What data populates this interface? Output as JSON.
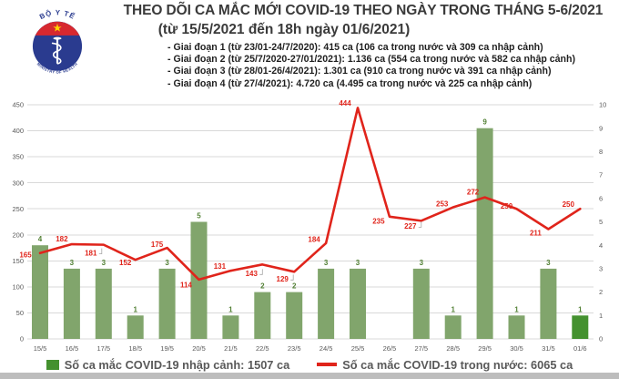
{
  "header": {
    "title": "THEO DÕI CA MẮC MỚI COVID-19 THEO NGÀY TRONG THÁNG 5-6/2021",
    "subtitle": "(từ 15/5/2021 đến 18h ngày 01/6/2021)",
    "bullets": [
      "- Giai đoạn 1 (từ 23/01-24/7/2020): 415 ca (106 ca trong nước và 309 ca nhập cảnh)",
      "- Giai đoạn 2 (từ 25/7/2020-27/01/2021): 1.136 ca (554 ca trong nước và 582 ca nhập cảnh)",
      "- Giai đoạn 3 (từ 28/01-26/4/2021): 1.301 ca (910 ca trong nước và 391 ca nhập cảnh)",
      "- Giai đoạn 4 (từ 27/4/2021): 4.720 ca (4.495 ca trong nước và 225 ca nhập cảnh)"
    ]
  },
  "logo": {
    "top_text": "BỘ Y TẾ",
    "bottom_text": "MINISTRY OF HEALTH",
    "colors": {
      "blue": "#2a3b8f",
      "red": "#d7282f",
      "star_yellow": "#ffd200"
    }
  },
  "chart_data": {
    "type": "bar+line",
    "categories": [
      "15/5",
      "16/5",
      "17/5",
      "18/5",
      "19/5",
      "20/5",
      "21/5",
      "22/5",
      "23/5",
      "24/5",
      "25/5",
      "26/5",
      "27/5",
      "28/5",
      "29/5",
      "30/5",
      "31/5",
      "01/6"
    ],
    "series": [
      {
        "name": "Số ca mắc COVID-19 nhập cảnh",
        "type": "bar",
        "axis": "right",
        "color": "#81a56c",
        "last_bar_color": "#44912f",
        "label_color": "#538135",
        "values": [
          4,
          3,
          3,
          1,
          3,
          5,
          1,
          2,
          2,
          3,
          3,
          0,
          3,
          1,
          9,
          1,
          3,
          1
        ]
      },
      {
        "name": "Số ca mắc COVID-19 trong nước",
        "type": "line",
        "axis": "left",
        "color": "#e0241b",
        "label_color": "#e0241b",
        "values": [
          165,
          182,
          181,
          152,
          175,
          114,
          131,
          143,
          129,
          184,
          444,
          235,
          227,
          253,
          272,
          250,
          211,
          250
        ]
      }
    ],
    "left_axis": {
      "min": 0,
      "max": 450,
      "step": 50
    },
    "right_axis": {
      "min": 0,
      "max": 10,
      "step": 1
    },
    "grid": true,
    "gridline_color": "#d9d9d9",
    "axis_label_color": "#595959",
    "legend_position": "bottom"
  },
  "legend": {
    "imported_label": "Số ca mắc COVID-19 nhập cảnh: 1507 ca",
    "domestic_label": "Số ca mắc COVID-19 trong nước: 6065 ca",
    "imported_swatch_color": "#44912f",
    "domestic_line_color": "#e0241b"
  }
}
